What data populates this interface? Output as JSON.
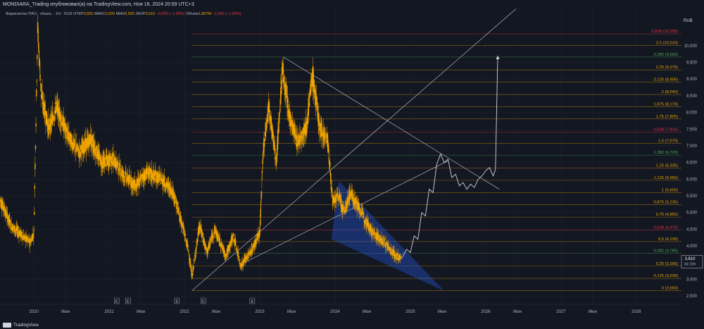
{
  "header": {
    "title": "MONDIARA_Trading опубликовал(а) на TradingView.com, Ноя 18, 2024 20:59 UTC+3"
  },
  "legend": {
    "symbol": "Фармсинтез ПАО · обыкн. · 1Н · RUS",
    "open_label": "ОТКР",
    "open": "3,655",
    "high_label": "МАКС",
    "high": "3,655",
    "low_label": "МИН",
    "low": "3,565",
    "close_label": "ЗАКР",
    "close": "3,610",
    "change": "−0,055 (−1,50%)",
    "volume_label": "Объём",
    "volume": "1,807M",
    "volume_change": "−0,055 (−1,50%)"
  },
  "footer": {
    "brand": "TradingView"
  },
  "colors": {
    "background": "#131722",
    "candle": "#f0a500",
    "fib_orange": "#f0a500",
    "fib_red": "#f23645",
    "fib_green": "#4caf50",
    "wedge": "#2962ff",
    "projection": "#d1d4dc"
  },
  "chart_data": {
    "type": "candlestick",
    "currency": "RUB",
    "price_tag": {
      "value": "3,610",
      "timer": "3d 23h"
    },
    "ylim": [
      2.25,
      11.2
    ],
    "y_ticks": [
      "2,500",
      "3,000",
      "3,500",
      "4,000",
      "4,500",
      "5,000",
      "5,500",
      "6,000",
      "6,500",
      "7,000",
      "7,500",
      "8,000",
      "8,500",
      "9,000",
      "9,500",
      "10,000"
    ],
    "y_tick_values": [
      2.5,
      3.0,
      3.5,
      4.0,
      4.5,
      5.0,
      5.5,
      6.0,
      6.5,
      7.0,
      7.5,
      8.0,
      8.5,
      9.0,
      9.5,
      10.0
    ],
    "x_ticks": [
      "2020",
      "Июн",
      "2021",
      "Июн",
      "2022",
      "Июн",
      "2023",
      "Июн",
      "2024",
      "Июн",
      "2025",
      "Июн",
      "2026",
      "Июн",
      "2027",
      "Июн",
      "2028"
    ],
    "x_tick_values": [
      2020.0,
      2020.42,
      2021.0,
      2021.42,
      2022.0,
      2022.42,
      2023.0,
      2023.42,
      2024.0,
      2024.42,
      2025.0,
      2025.42,
      2026.0,
      2026.42,
      2027.0,
      2027.42,
      2028.0
    ],
    "xlim": [
      2019.55,
      2028.6
    ],
    "events": [
      {
        "label": "E",
        "x": 2021.1
      },
      {
        "label": "E",
        "x": 2021.25
      },
      {
        "label": "E",
        "x": 2021.9
      },
      {
        "label": "E",
        "x": 2022.25
      },
      {
        "label": "E",
        "x": 2022.9
      }
    ],
    "fib_levels": [
      {
        "ratio": "0",
        "label": "0 (2,660)",
        "value": 2.66,
        "color": "#f0a500"
      },
      {
        "ratio": "0.125",
        "label": "0,125 (3,030)",
        "value": 3.03,
        "color": "#f0a500"
      },
      {
        "ratio": "0.25",
        "label": "0,25 (3,395)",
        "value": 3.395,
        "color": "#f0a500"
      },
      {
        "ratio": "0.382",
        "label": "0,382 (3,785)",
        "value": 3.785,
        "color": "#4caf50"
      },
      {
        "ratio": "0.5",
        "label": "0,5 (4,130)",
        "value": 4.13,
        "color": "#f0a500"
      },
      {
        "ratio": "0.618",
        "label": "0,618 (4,475)",
        "value": 4.475,
        "color": "#f23645"
      },
      {
        "ratio": "0.75",
        "label": "0,75 (4,865)",
        "value": 4.865,
        "color": "#f0a500"
      },
      {
        "ratio": "0.875",
        "label": "0,875 (5,235)",
        "value": 5.235,
        "color": "#f0a500"
      },
      {
        "ratio": "1",
        "label": "1 (5,600)",
        "value": 5.6,
        "color": "#f0a500"
      },
      {
        "ratio": "1.125",
        "label": "1,125 (5,965)",
        "value": 5.965,
        "color": "#f0a500"
      },
      {
        "ratio": "1.25",
        "label": "1,25 (6,335)",
        "value": 6.335,
        "color": "#f0a500"
      },
      {
        "ratio": "1.382",
        "label": "1,382 (6,720)",
        "value": 6.72,
        "color": "#4caf50"
      },
      {
        "ratio": "1.5",
        "label": "1,5 (7,070)",
        "value": 7.07,
        "color": "#f0a500"
      },
      {
        "ratio": "1.618",
        "label": "1,618 (7,415)",
        "value": 7.415,
        "color": "#f23645"
      },
      {
        "ratio": "1.75",
        "label": "1,75 (7,805)",
        "value": 7.805,
        "color": "#f0a500"
      },
      {
        "ratio": "1.875",
        "label": "1,875 (8,170)",
        "value": 8.17,
        "color": "#f0a500"
      },
      {
        "ratio": "2",
        "label": "2 (8,540)",
        "value": 8.54,
        "color": "#f0a500"
      },
      {
        "ratio": "2.125",
        "label": "2,125 (8,905)",
        "value": 8.905,
        "color": "#f0a500"
      },
      {
        "ratio": "2.25",
        "label": "2,25 (9,275)",
        "value": 9.275,
        "color": "#f0a500"
      },
      {
        "ratio": "2.382",
        "label": "2,382 (9,660)",
        "value": 9.66,
        "color": "#4caf50"
      },
      {
        "ratio": "2.5",
        "label": "2,5 (10,010)",
        "value": 10.01,
        "color": "#f0a500"
      },
      {
        "ratio": "2.618",
        "label": "2,618 (10,355)",
        "value": 10.355,
        "color": "#f23645"
      }
    ],
    "price_path": [
      [
        2019.55,
        5.4
      ],
      [
        2019.7,
        4.6
      ],
      [
        2019.85,
        4.3
      ],
      [
        2019.95,
        4.1
      ],
      [
        2020.0,
        4.4
      ],
      [
        2020.05,
        10.5
      ],
      [
        2020.1,
        8.5
      ],
      [
        2020.2,
        7.5
      ],
      [
        2020.3,
        8.2
      ],
      [
        2020.45,
        7.3
      ],
      [
        2020.6,
        6.8
      ],
      [
        2020.75,
        7.2
      ],
      [
        2020.9,
        6.5
      ],
      [
        2021.05,
        6.6
      ],
      [
        2021.2,
        6.1
      ],
      [
        2021.35,
        5.8
      ],
      [
        2021.5,
        6.2
      ],
      [
        2021.7,
        6.0
      ],
      [
        2021.85,
        5.6
      ],
      [
        2021.95,
        4.8
      ],
      [
        2022.05,
        3.9
      ],
      [
        2022.1,
        3.1
      ],
      [
        2022.2,
        4.6
      ],
      [
        2022.3,
        3.8
      ],
      [
        2022.4,
        4.5
      ],
      [
        2022.55,
        3.7
      ],
      [
        2022.65,
        4.3
      ],
      [
        2022.75,
        3.4
      ],
      [
        2022.9,
        3.9
      ],
      [
        2023.0,
        4.4
      ],
      [
        2023.05,
        7.0
      ],
      [
        2023.12,
        8.2
      ],
      [
        2023.22,
        6.5
      ],
      [
        2023.3,
        9.3
      ],
      [
        2023.38,
        8.0
      ],
      [
        2023.5,
        7.1
      ],
      [
        2023.62,
        7.6
      ],
      [
        2023.7,
        9.1
      ],
      [
        2023.8,
        7.5
      ],
      [
        2023.9,
        7.2
      ],
      [
        2023.97,
        5.3
      ],
      [
        2024.05,
        5.5
      ],
      [
        2024.12,
        5.0
      ],
      [
        2024.2,
        5.6
      ],
      [
        2024.3,
        5.2
      ],
      [
        2024.4,
        4.8
      ],
      [
        2024.5,
        4.4
      ],
      [
        2024.6,
        4.2
      ],
      [
        2024.7,
        4.0
      ],
      [
        2024.8,
        3.7
      ],
      [
        2024.88,
        3.61
      ]
    ],
    "projection_path": [
      [
        2024.88,
        3.61
      ],
      [
        2024.95,
        3.9
      ],
      [
        2025.0,
        3.8
      ],
      [
        2025.05,
        4.3
      ],
      [
        2025.1,
        4.2
      ],
      [
        2025.15,
        5.0
      ],
      [
        2025.2,
        4.9
      ],
      [
        2025.25,
        5.7
      ],
      [
        2025.3,
        5.6
      ],
      [
        2025.35,
        6.45
      ],
      [
        2025.4,
        6.75
      ],
      [
        2025.45,
        6.5
      ],
      [
        2025.5,
        6.6
      ],
      [
        2025.55,
        6.05
      ],
      [
        2025.6,
        6.15
      ],
      [
        2025.65,
        5.8
      ],
      [
        2025.7,
        5.9
      ],
      [
        2025.75,
        5.7
      ],
      [
        2025.8,
        5.85
      ],
      [
        2025.85,
        5.75
      ],
      [
        2025.9,
        6.0
      ],
      [
        2025.95,
        6.1
      ],
      [
        2026.0,
        6.25
      ],
      [
        2026.05,
        6.35
      ],
      [
        2026.1,
        6.1
      ],
      [
        2026.13,
        6.3
      ],
      [
        2026.16,
        9.7
      ]
    ],
    "trendlines": [
      {
        "name": "upper-downtrend",
        "from": [
          2023.32,
          9.65
        ],
        "to": [
          2026.18,
          5.7
        ]
      },
      {
        "name": "long-uptrend",
        "from": [
          2022.1,
          2.66
        ],
        "to": [
          2026.4,
          11.1
        ]
      },
      {
        "name": "short-uptrend",
        "from": [
          2022.75,
          3.45
        ],
        "to": [
          2025.5,
          6.55
        ]
      }
    ],
    "wedge": [
      [
        2024.05,
        5.95
      ],
      [
        2023.95,
        4.2
      ],
      [
        2025.45,
        2.65
      ]
    ]
  }
}
